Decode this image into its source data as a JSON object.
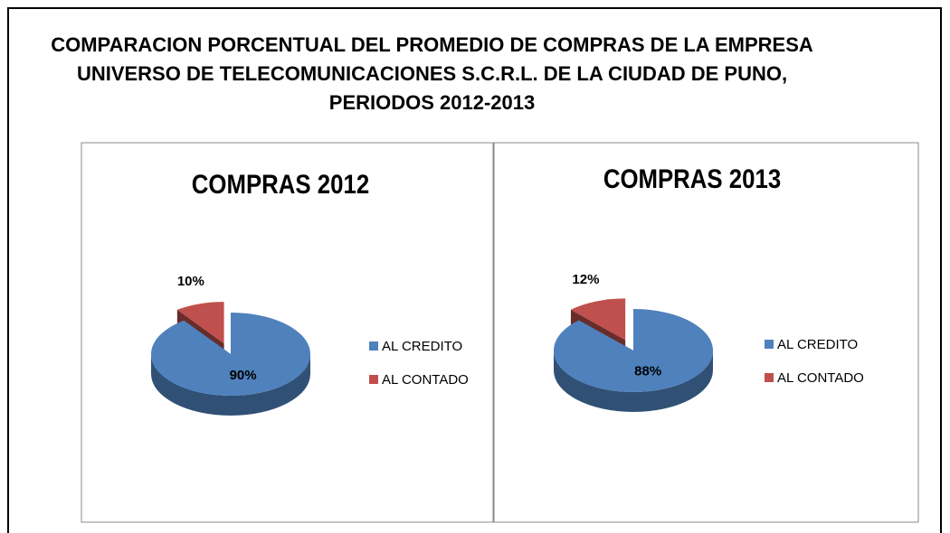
{
  "title": "COMPARACION PORCENTUAL DEL PROMEDIO DE COMPRAS DE LA EMPRESA UNIVERSO DE TELECOMUNICACIONES S.C.R.L. DE LA CIUDAD DE PUNO, PERIODOS 2012-2013",
  "chart_data": [
    {
      "type": "pie",
      "title": "COMPRAS 2012",
      "categories": [
        "AL CREDITO",
        "AL CONTADO"
      ],
      "values": [
        90,
        10
      ],
      "value_labels": [
        "90%",
        "10%"
      ],
      "colors": [
        "#4f81bd",
        "#c0504d"
      ],
      "legend": "right"
    },
    {
      "type": "pie",
      "title": "COMPRAS 2013",
      "categories": [
        "AL CREDITO",
        "AL CONTADO"
      ],
      "values": [
        88,
        12
      ],
      "value_labels": [
        "88%",
        "12%"
      ],
      "colors": [
        "#4f81bd",
        "#c0504d"
      ],
      "legend": "right"
    }
  ]
}
